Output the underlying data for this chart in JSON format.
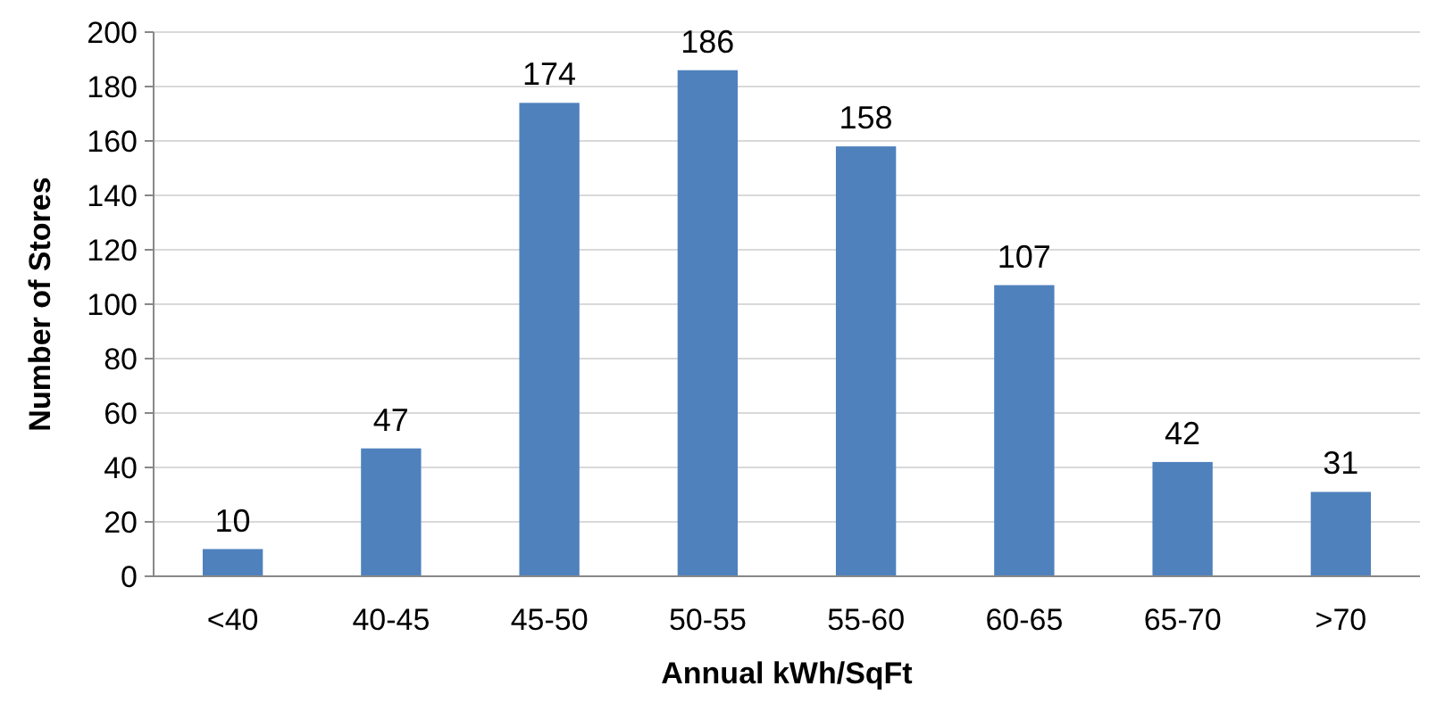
{
  "chart_data": {
    "type": "bar",
    "xlabel": "Annual kWh/SqFt",
    "ylabel": "Number of Stores",
    "categories": [
      "<40",
      "40-45",
      "45-50",
      "50-55",
      "55-60",
      "60-65",
      "65-70",
      ">70"
    ],
    "values": [
      10,
      47,
      174,
      186,
      158,
      107,
      42,
      31
    ],
    "color": "#4f81bd",
    "ylim": [
      0,
      200
    ],
    "yticks": [
      0,
      20,
      40,
      60,
      80,
      100,
      120,
      140,
      160,
      180,
      200
    ],
    "grid": "y",
    "data_labels": true
  }
}
